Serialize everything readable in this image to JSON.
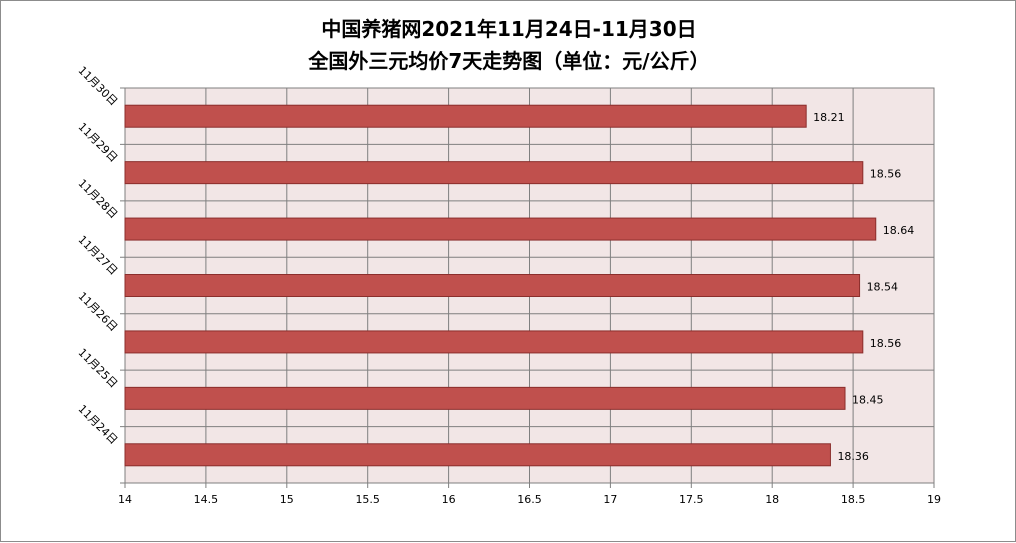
{
  "chart_data": {
    "type": "bar",
    "orientation": "horizontal",
    "title_line1": "中国养猪网2021年11月24日-11月30日",
    "title_line2": "全国外三元均价7天走势图（单位：元/公斤）",
    "categories": [
      "11月30日",
      "11月29日",
      "11月28日",
      "11月27日",
      "11月26日",
      "11月25日",
      "11月24日"
    ],
    "values": [
      18.21,
      18.56,
      18.64,
      18.54,
      18.56,
      18.45,
      18.36
    ],
    "value_labels": [
      "18.21",
      "18.56",
      "18.64",
      "18.54",
      "18.56",
      "18.45",
      "18.36"
    ],
    "x_ticks": [
      "14",
      "14.5",
      "15",
      "15.5",
      "16",
      "16.5",
      "17",
      "17.5",
      "18",
      "18.5",
      "19"
    ],
    "xlim": [
      14,
      19
    ],
    "grid": true,
    "legend": "none",
    "colors": {
      "bar": "#c0504d",
      "bar_stroke": "#8b2e2c",
      "plot_bg": "#f2e6e6",
      "grid": "#7f7f7f"
    }
  }
}
